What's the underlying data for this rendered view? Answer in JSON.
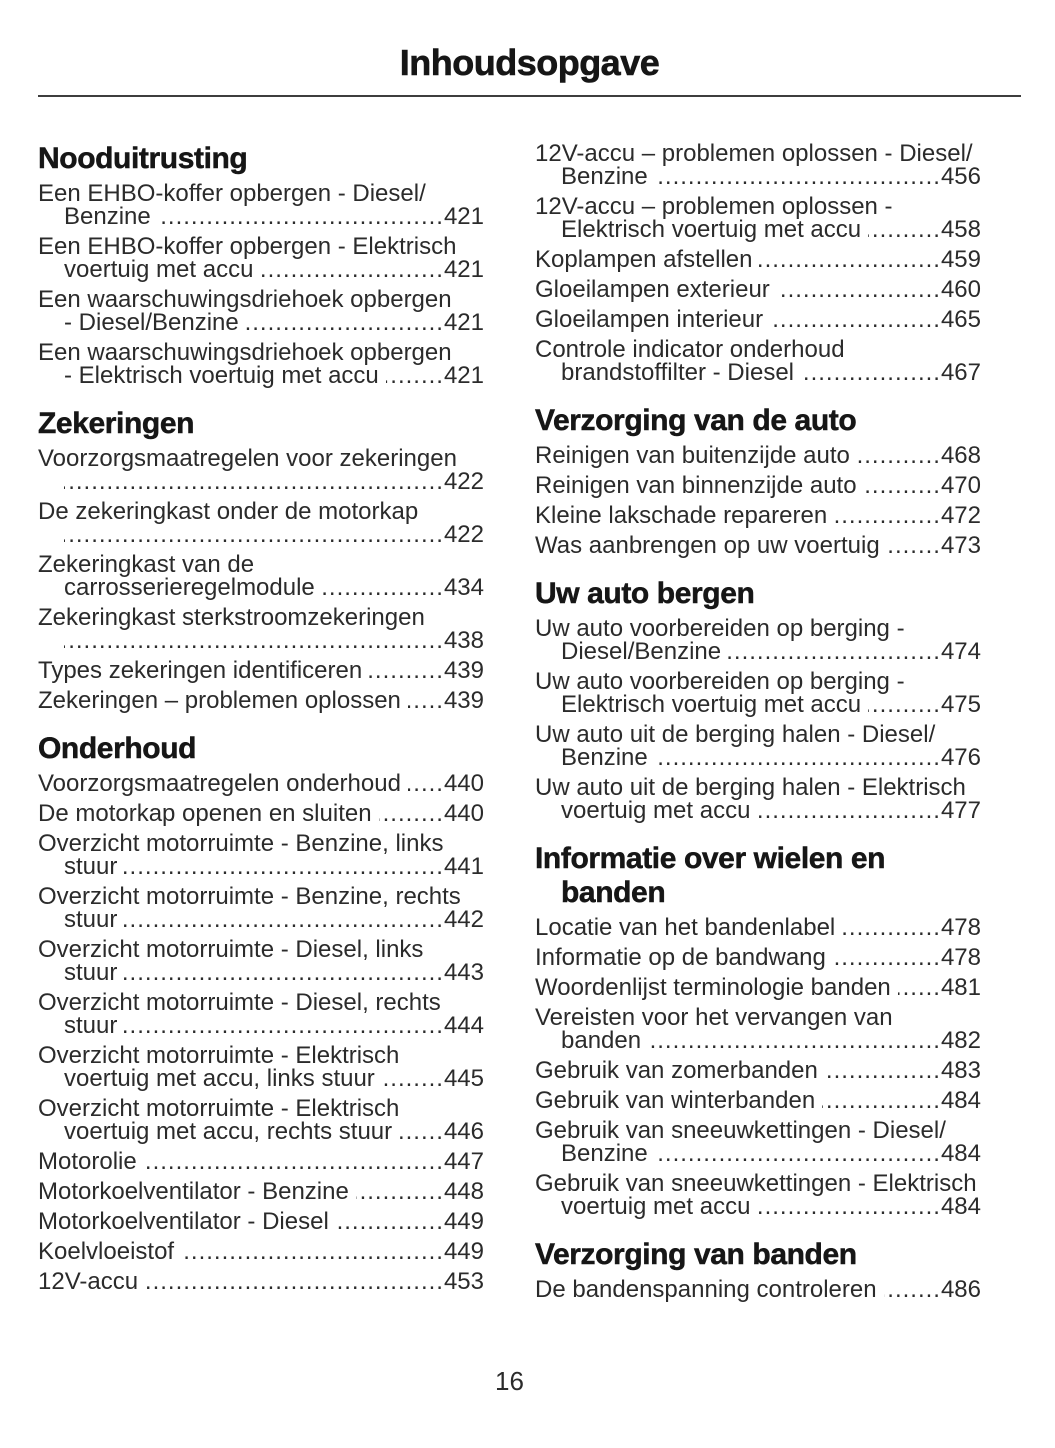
{
  "title": "Inhoudsopgave",
  "footer_page_number": "16",
  "colors": {
    "text": "#2b2b2b",
    "heading": "#161616",
    "rule": "#3d3d3d",
    "background": "#ffffff"
  },
  "columns": [
    {
      "sections": [
        {
          "heading": "Nooduitrusting",
          "entries": [
            {
              "pre": [
                "Een EHBO-koffer opbergen - Diesel/"
              ],
              "last": "Benzine",
              "page": "421"
            },
            {
              "pre": [
                "Een EHBO-koffer opbergen - Elektrisch"
              ],
              "last": "voertuig met accu",
              "page": "421"
            },
            {
              "pre": [
                "Een waarschuwingsdriehoek opbergen"
              ],
              "last": "- Diesel/Benzine",
              "page": "421"
            },
            {
              "pre": [
                "Een waarschuwingsdriehoek opbergen"
              ],
              "last": "- Elektrisch voertuig met accu",
              "page": "421"
            }
          ]
        },
        {
          "heading": "Zekeringen",
          "entries": [
            {
              "pre": [
                "Voorzorgsmaatregelen voor zekeringen"
              ],
              "last": "",
              "page": "422"
            },
            {
              "pre": [
                "De zekeringkast onder de motorkap"
              ],
              "last": "",
              "page": "422"
            },
            {
              "pre": [
                "Zekeringkast van de"
              ],
              "last": "carrosserieregelmodule",
              "page": "434"
            },
            {
              "pre": [
                "Zekeringkast sterkstroomzekeringen"
              ],
              "last": "",
              "page": "438"
            },
            {
              "pre": [],
              "last": "Types zekeringen identificeren",
              "page": "439"
            },
            {
              "pre": [],
              "last": "Zekeringen – problemen oplossen",
              "page": "439"
            }
          ]
        },
        {
          "heading": "Onderhoud",
          "entries": [
            {
              "pre": [],
              "last": "Voorzorgsmaatregelen onderhoud",
              "page": "440"
            },
            {
              "pre": [],
              "last": "De motorkap openen en sluiten",
              "page": "440"
            },
            {
              "pre": [
                "Overzicht motorruimte - Benzine, links"
              ],
              "last": "stuur",
              "page": "441"
            },
            {
              "pre": [
                "Overzicht motorruimte - Benzine, rechts"
              ],
              "last": "stuur",
              "page": "442"
            },
            {
              "pre": [
                "Overzicht motorruimte - Diesel, links"
              ],
              "last": "stuur",
              "page": "443"
            },
            {
              "pre": [
                "Overzicht motorruimte - Diesel, rechts"
              ],
              "last": "stuur",
              "page": "444"
            },
            {
              "pre": [
                "Overzicht motorruimte - Elektrisch"
              ],
              "last": "voertuig met accu, links stuur",
              "page": "445"
            },
            {
              "pre": [
                "Overzicht motorruimte - Elektrisch"
              ],
              "last": "voertuig met accu, rechts stuur",
              "page": "446"
            },
            {
              "pre": [],
              "last": "Motorolie",
              "page": "447"
            },
            {
              "pre": [],
              "last": "Motorkoelventilator - Benzine",
              "page": "448"
            },
            {
              "pre": [],
              "last": "Motorkoelventilator - Diesel",
              "page": "449"
            },
            {
              "pre": [],
              "last": "Koelvloeistof",
              "page": "449"
            },
            {
              "pre": [],
              "last": "12V-accu",
              "page": "453"
            }
          ]
        }
      ]
    },
    {
      "sections": [
        {
          "heading": "",
          "entries": [
            {
              "pre": [
                "12V-accu – problemen oplossen - Diesel/"
              ],
              "last": "Benzine",
              "page": "456"
            },
            {
              "pre": [
                "12V-accu – problemen oplossen -"
              ],
              "last": "Elektrisch voertuig met accu",
              "page": "458"
            },
            {
              "pre": [],
              "last": "Koplampen afstellen",
              "page": "459"
            },
            {
              "pre": [],
              "last": "Gloeilampen exterieur",
              "page": "460"
            },
            {
              "pre": [],
              "last": "Gloeilampen interieur",
              "page": "465"
            },
            {
              "pre": [
                "Controle indicator onderhoud"
              ],
              "last": "brandstoffilter - Diesel",
              "page": "467"
            }
          ]
        },
        {
          "heading": "Verzorging van de auto",
          "entries": [
            {
              "pre": [],
              "last": "Reinigen van buitenzijde auto",
              "page": "468"
            },
            {
              "pre": [],
              "last": "Reinigen van binnenzijde auto",
              "page": "470"
            },
            {
              "pre": [],
              "last": "Kleine lakschade repareren",
              "page": "472"
            },
            {
              "pre": [],
              "last": "Was aanbrengen op uw voertuig",
              "page": "473"
            }
          ]
        },
        {
          "heading": "Uw auto bergen",
          "entries": [
            {
              "pre": [
                "Uw auto voorbereiden op berging -"
              ],
              "last": "Diesel/Benzine",
              "page": "474"
            },
            {
              "pre": [
                "Uw auto voorbereiden op berging -"
              ],
              "last": "Elektrisch voertuig met accu",
              "page": "475"
            },
            {
              "pre": [
                "Uw auto uit de berging halen - Diesel/"
              ],
              "last": "Benzine",
              "page": "476"
            },
            {
              "pre": [
                "Uw auto uit de berging halen - Elektrisch"
              ],
              "last": "voertuig met accu",
              "page": "477"
            }
          ]
        },
        {
          "heading": "Informatie over wielen en banden",
          "entries": [
            {
              "pre": [],
              "last": "Locatie van het bandenlabel",
              "page": "478"
            },
            {
              "pre": [],
              "last": "Informatie op de bandwang",
              "page": "478"
            },
            {
              "pre": [],
              "last": "Woordenlijst terminologie banden",
              "page": "481"
            },
            {
              "pre": [
                "Vereisten voor het vervangen van"
              ],
              "last": "banden",
              "page": "482"
            },
            {
              "pre": [],
              "last": "Gebruik van zomerbanden",
              "page": "483"
            },
            {
              "pre": [],
              "last": "Gebruik van winterbanden",
              "page": "484"
            },
            {
              "pre": [
                "Gebruik van sneeuwkettingen - Diesel/"
              ],
              "last": "Benzine",
              "page": "484"
            },
            {
              "pre": [
                "Gebruik van sneeuwkettingen - Elektrisch"
              ],
              "last": "voertuig met accu",
              "page": "484"
            }
          ]
        },
        {
          "heading": "Verzorging van banden",
          "entries": [
            {
              "pre": [],
              "last": "De bandenspanning controleren",
              "page": "486"
            }
          ]
        }
      ]
    }
  ]
}
